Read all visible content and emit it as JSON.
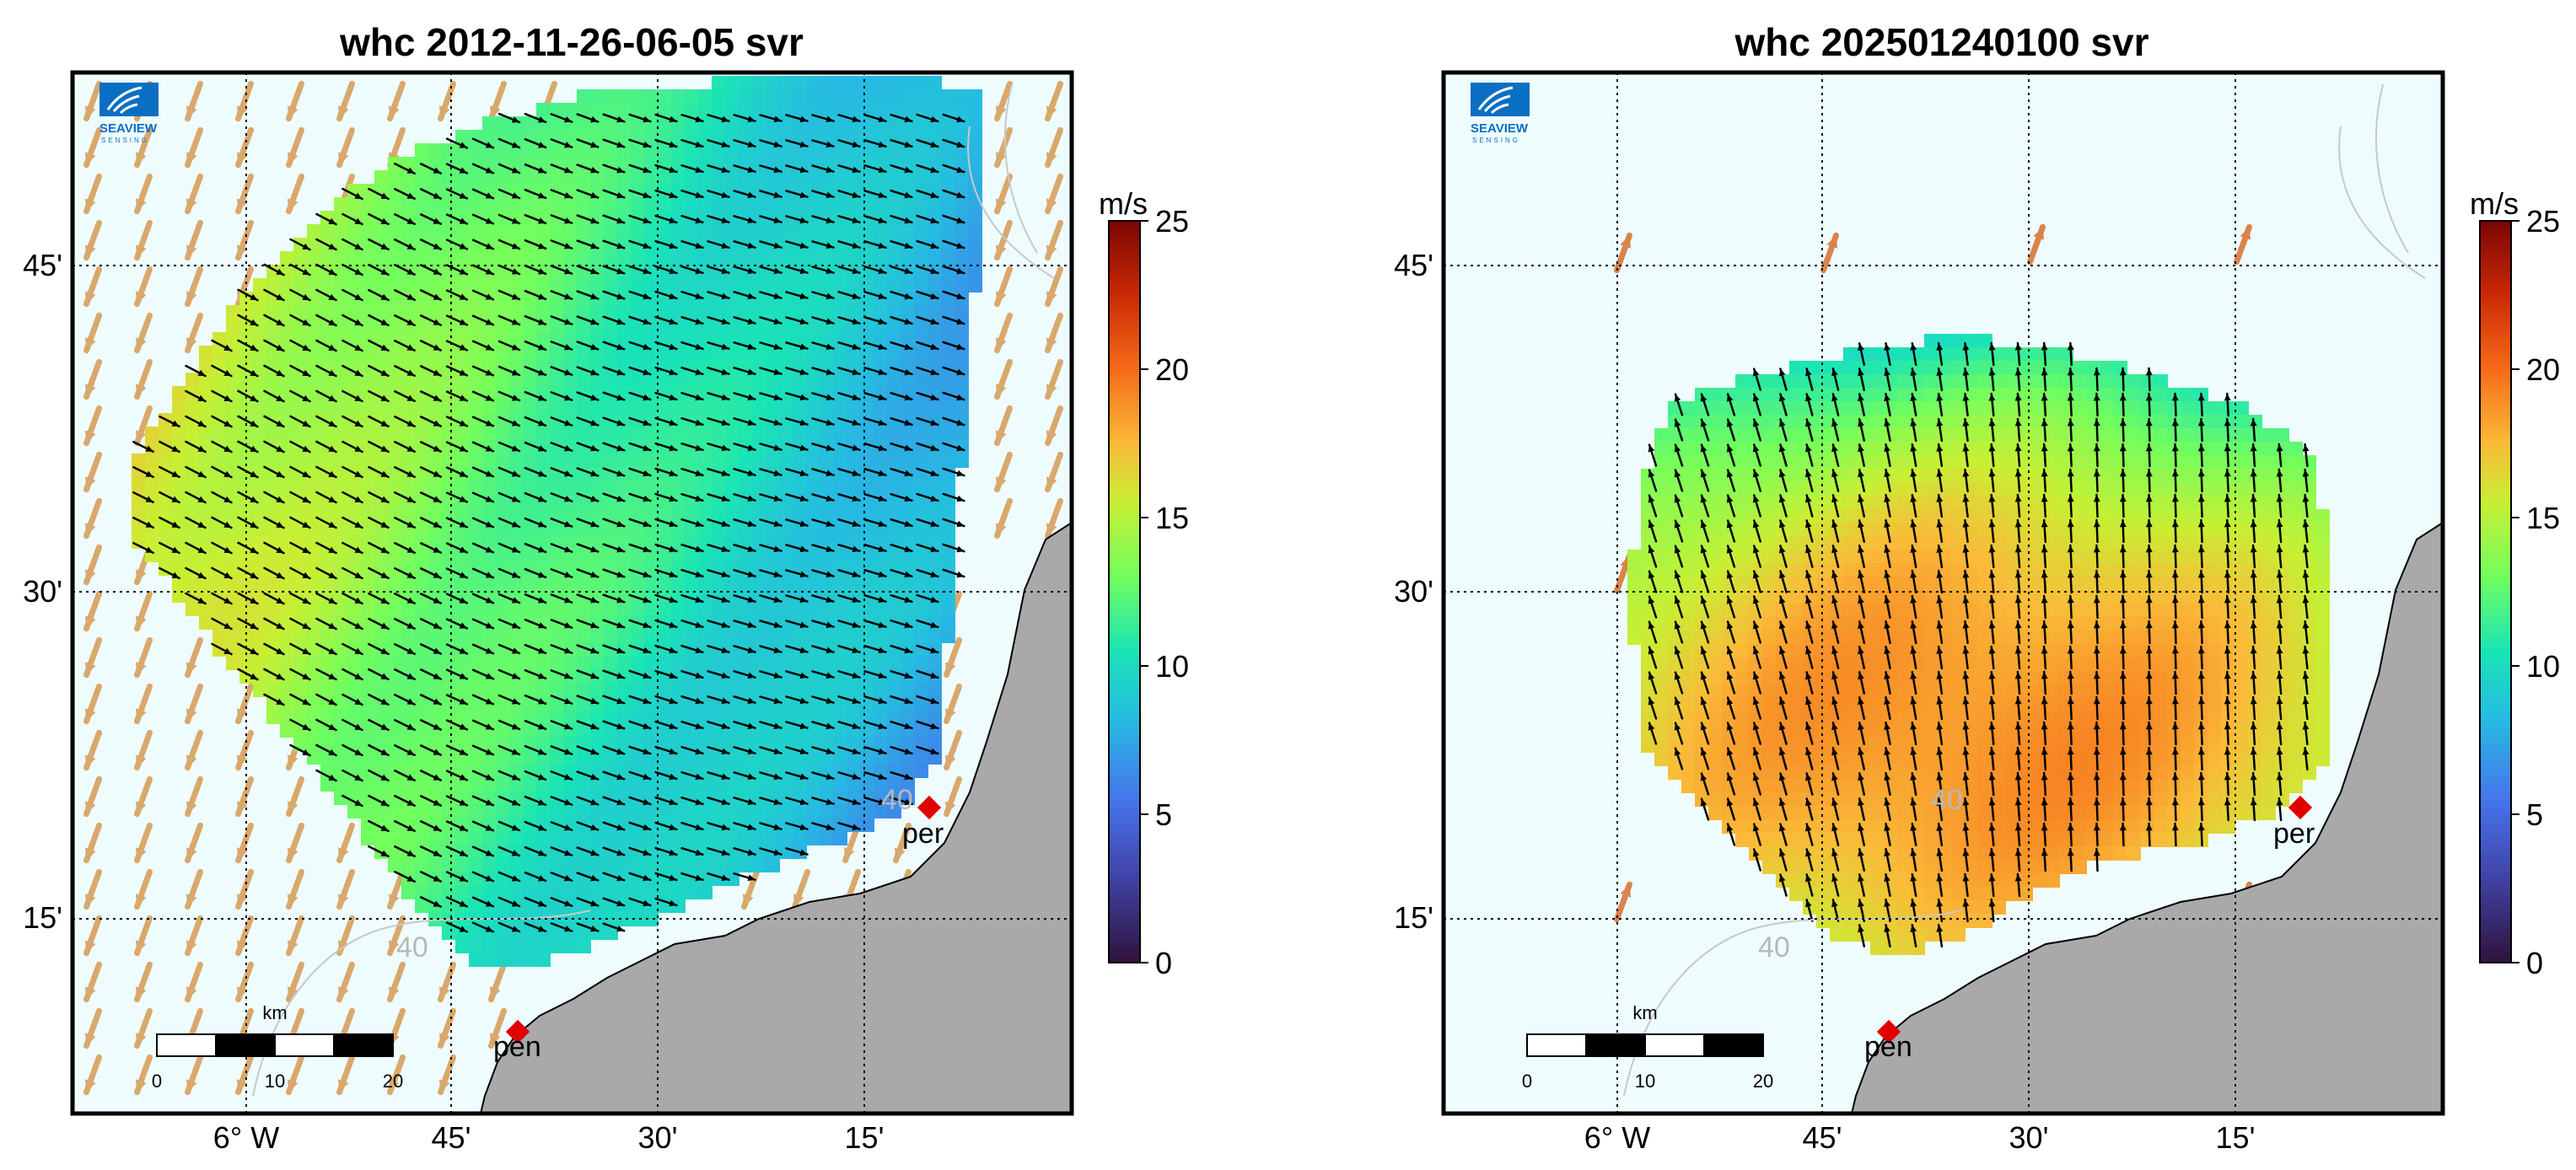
{
  "colorbar": {
    "unit": "m/s",
    "ticks": [
      "0",
      "5",
      "10",
      "15",
      "20",
      "25"
    ],
    "min": 0,
    "max": 25
  },
  "logo": {
    "name": "SEAVIEW",
    "sub": "SENSING"
  },
  "scalebar": {
    "unit": "km",
    "labels": [
      "0",
      "10",
      "20"
    ]
  },
  "stations": [
    "per",
    "pen"
  ],
  "contour_label": "40",
  "colors": {
    "land": "#a9a9a9",
    "sea": "#eefcfd",
    "model_arrow": "#d9a86c",
    "radar_arrow": "#000000",
    "station": "#e00000"
  },
  "panels": [
    {
      "title": "whc 2012-11-26-06-05 svr",
      "xticks": [
        "6°  W",
        "45'",
        "30'",
        "15'"
      ],
      "yticks": [
        "45'",
        "30'",
        "15'"
      ],
      "wind": {
        "direction_to_deg": 112,
        "typical_speed_ms": 13
      }
    },
    {
      "title": "whc 202501240100 svr",
      "xticks": [
        "6°  W",
        "45'",
        "30'",
        "15'"
      ],
      "yticks": [
        "45'",
        "30'",
        "15'"
      ],
      "wind": {
        "direction_to_deg": 350,
        "typical_speed_ms": 16
      }
    }
  ]
}
